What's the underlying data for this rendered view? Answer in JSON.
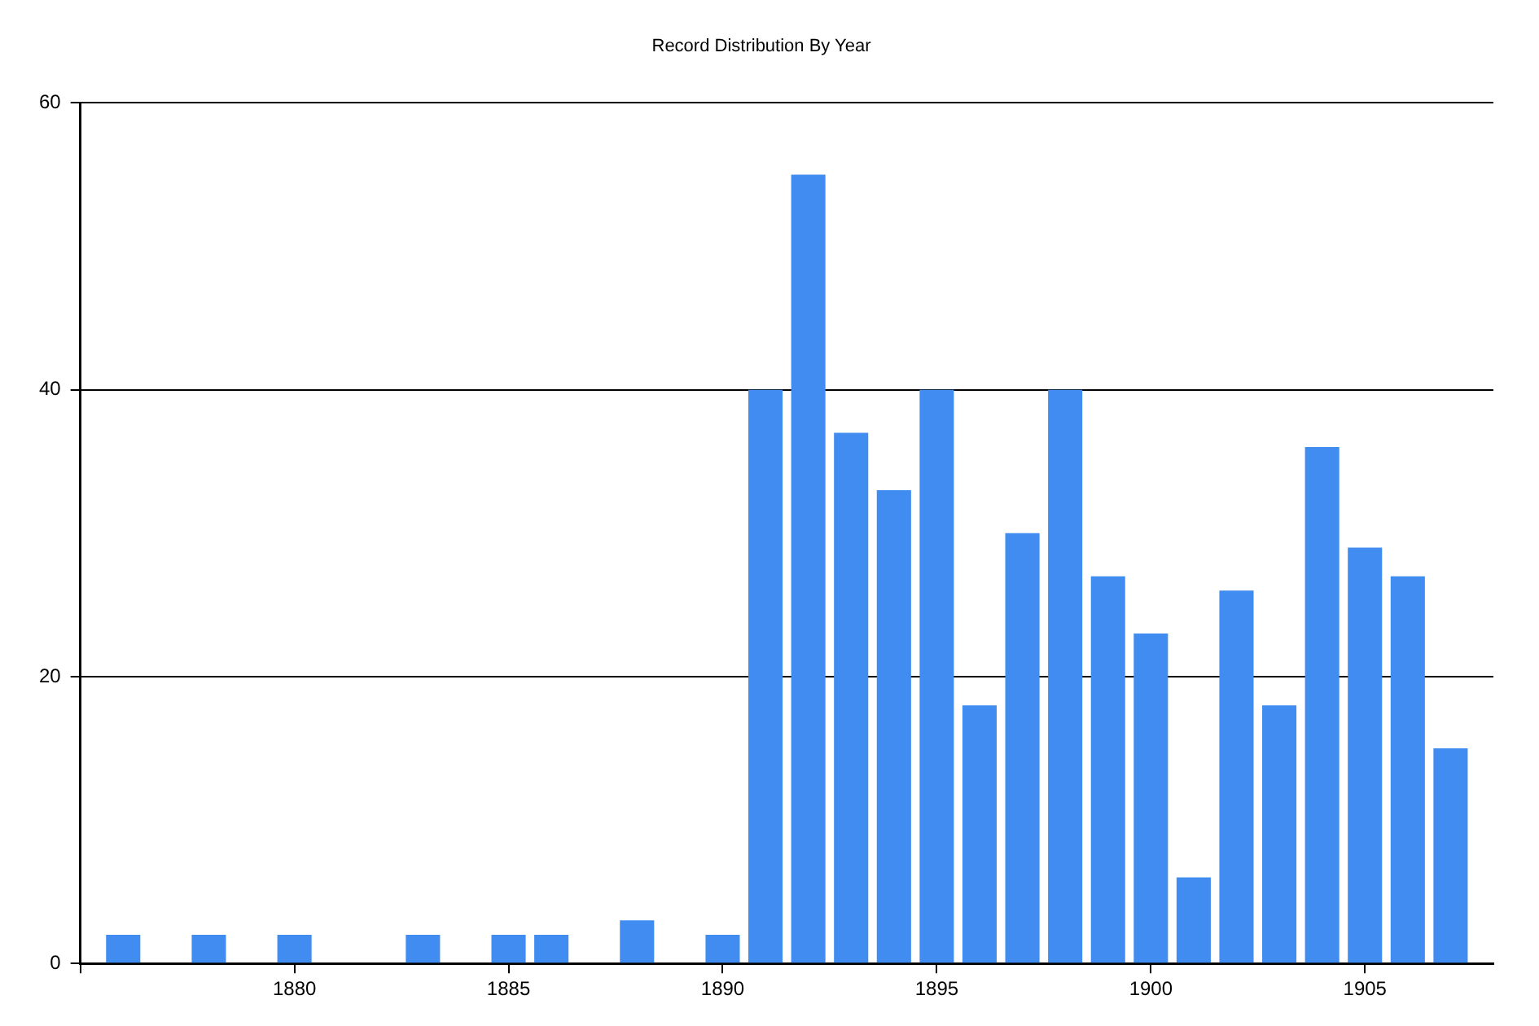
{
  "chart_data": {
    "type": "bar",
    "title": "Record Distribution By Year",
    "x": [
      1876,
      1878,
      1880,
      1883,
      1885,
      1886,
      1888,
      1890,
      1891,
      1892,
      1893,
      1894,
      1895,
      1896,
      1897,
      1898,
      1899,
      1900,
      1901,
      1902,
      1903,
      1904,
      1905,
      1906,
      1907
    ],
    "values": [
      2,
      2,
      2,
      2,
      2,
      2,
      3,
      2,
      40,
      55,
      37,
      33,
      40,
      18,
      30,
      40,
      27,
      23,
      6,
      26,
      18,
      36,
      29,
      27,
      15
    ],
    "color": "#418cf0",
    "xlim": [
      1875,
      1908
    ],
    "xticks": [
      {
        "value": 1875,
        "label": null
      },
      1880,
      1885,
      1890,
      1895,
      1900,
      1905
    ],
    "ylim": [
      0,
      60
    ],
    "yticks": [
      0,
      20,
      40,
      60
    ],
    "grid": "y",
    "legend": false
  }
}
